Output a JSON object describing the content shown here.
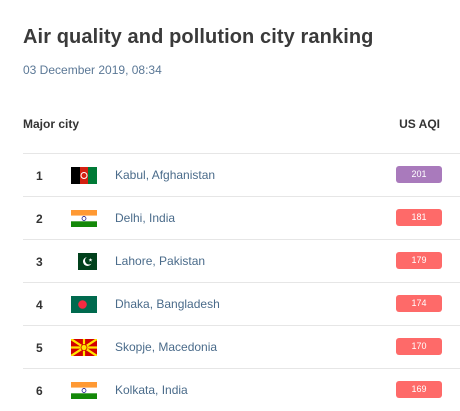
{
  "page": {
    "title": "Air quality and pollution city ranking",
    "timestamp": "03 December 2019, 08:34"
  },
  "table": {
    "col_city": "Major city",
    "col_aqi": "US AQI",
    "rows": [
      {
        "rank": "1",
        "city": "Kabul, Afghanistan",
        "aqi": "201",
        "color": "#a97abc",
        "flag": "afghanistan-flag-icon"
      },
      {
        "rank": "2",
        "city": "Delhi, India",
        "aqi": "181",
        "color": "#fe6a69",
        "flag": "india-flag-icon"
      },
      {
        "rank": "3",
        "city": "Lahore, Pakistan",
        "aqi": "179",
        "color": "#fe6a69",
        "flag": "pakistan-flag-icon"
      },
      {
        "rank": "4",
        "city": "Dhaka, Bangladesh",
        "aqi": "174",
        "color": "#fe6a69",
        "flag": "bangladesh-flag-icon"
      },
      {
        "rank": "5",
        "city": "Skopje, Macedonia",
        "aqi": "170",
        "color": "#fe6a69",
        "flag": "macedonia-flag-icon"
      },
      {
        "rank": "6",
        "city": "Kolkata, India",
        "aqi": "169",
        "color": "#fe6a69",
        "flag": "india-flag-icon"
      }
    ]
  }
}
